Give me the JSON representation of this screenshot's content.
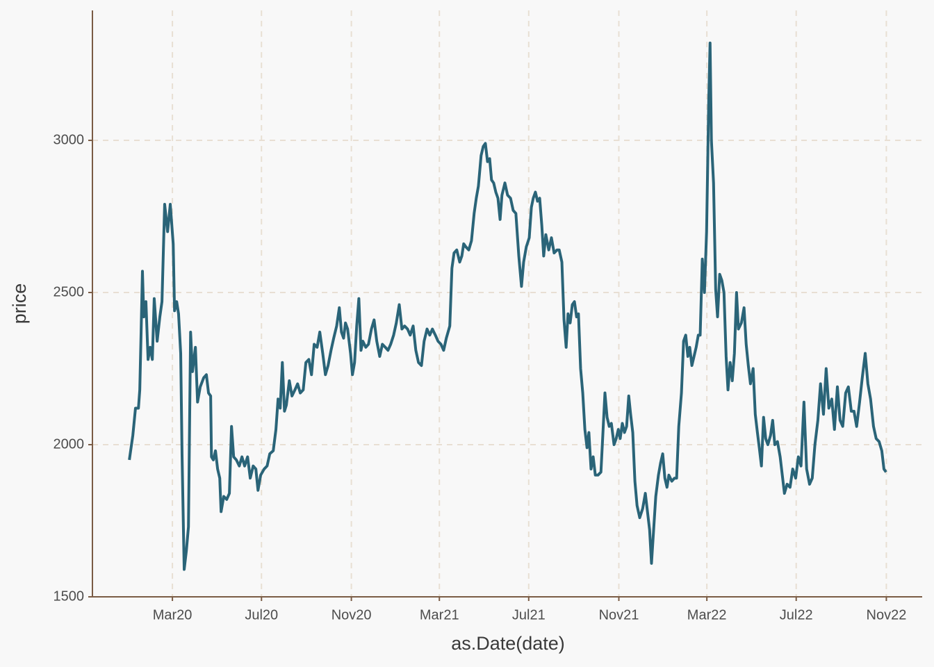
{
  "chart_data": {
    "type": "line",
    "x_label": "as.Date(date)",
    "y_label": "price",
    "color": "#2a6478",
    "grid": true,
    "xlim": [
      2019.865,
      2022.967
    ],
    "ylim": [
      1500,
      3427
    ],
    "xticks": [
      {
        "value": 2020.164,
        "label": "Mar20"
      },
      {
        "value": 2020.497,
        "label": "Jul20"
      },
      {
        "value": 2020.833,
        "label": "Nov20"
      },
      {
        "value": 2021.162,
        "label": "Mar21"
      },
      {
        "value": 2021.496,
        "label": "Jul21"
      },
      {
        "value": 2021.833,
        "label": "Nov21"
      },
      {
        "value": 2022.162,
        "label": "Mar22"
      },
      {
        "value": 2022.496,
        "label": "Jul22"
      },
      {
        "value": 2022.833,
        "label": "Nov22"
      }
    ],
    "yticks": [
      1500,
      2000,
      2500,
      3000
    ],
    "x": [
      2020.003,
      2020.016,
      2020.026,
      2020.037,
      2020.042,
      2020.047,
      2020.052,
      2020.057,
      2020.065,
      2020.073,
      2020.081,
      2020.089,
      2020.096,
      2020.107,
      2020.117,
      2020.125,
      2020.135,
      2020.146,
      2020.156,
      2020.167,
      2020.172,
      2020.18,
      2020.187,
      2020.195,
      2020.2,
      2020.208,
      2020.216,
      2020.224,
      2020.232,
      2020.239,
      2020.25,
      2020.258,
      2020.268,
      2020.281,
      2020.291,
      2020.299,
      2020.307,
      2020.31,
      2020.317,
      2020.325,
      2020.333,
      2020.341,
      2020.346,
      2020.356,
      2020.367,
      2020.377,
      2020.385,
      2020.393,
      2020.403,
      2020.414,
      2020.424,
      2020.434,
      2020.445,
      2020.455,
      2020.466,
      2020.476,
      2020.484,
      2020.494,
      2020.507,
      2020.518,
      2020.528,
      2020.541,
      2020.551,
      2020.559,
      2020.567,
      2020.575,
      2020.583,
      2020.59,
      2020.601,
      2020.611,
      2020.622,
      2020.632,
      2020.642,
      2020.653,
      2020.663,
      2020.674,
      2020.684,
      2020.694,
      2020.705,
      2020.715,
      2020.726,
      2020.736,
      2020.746,
      2020.757,
      2020.767,
      2020.778,
      2020.788,
      2020.796,
      2020.804,
      2020.811,
      2020.819,
      2020.83,
      2020.837,
      2020.845,
      2020.853,
      2020.861,
      2020.869,
      2020.876,
      2020.887,
      2020.897,
      2020.908,
      2020.918,
      2020.928,
      2020.939,
      2020.949,
      2020.96,
      2020.97,
      2020.98,
      2020.991,
      2021.001,
      2021.012,
      2021.022,
      2021.032,
      2021.043,
      2021.053,
      2021.064,
      2021.074,
      2021.084,
      2021.095,
      2021.105,
      2021.116,
      2021.126,
      2021.136,
      2021.147,
      2021.157,
      2021.168,
      2021.178,
      2021.188,
      2021.201,
      2021.209,
      2021.217,
      2021.227,
      2021.238,
      2021.246,
      2021.253,
      2021.261,
      2021.272,
      2021.282,
      2021.292,
      2021.3,
      2021.308,
      2021.318,
      2021.326,
      2021.334,
      2021.342,
      2021.35,
      2021.357,
      2021.365,
      2021.373,
      2021.381,
      2021.389,
      2021.396,
      2021.407,
      2021.417,
      2021.428,
      2021.438,
      2021.448,
      2021.459,
      2021.469,
      2021.477,
      2021.487,
      2021.498,
      2021.506,
      2021.513,
      2021.521,
      2021.529,
      2021.537,
      2021.545,
      2021.552,
      2021.56,
      2021.571,
      2021.581,
      2021.591,
      2021.602,
      2021.61,
      2021.62,
      2021.628,
      2021.636,
      2021.643,
      2021.651,
      2021.659,
      2021.667,
      2021.675,
      2021.682,
      2021.69,
      2021.698,
      2021.706,
      2021.714,
      2021.721,
      2021.729,
      2021.737,
      2021.745,
      2021.755,
      2021.766,
      2021.773,
      2021.781,
      2021.789,
      2021.797,
      2021.805,
      2021.815,
      2021.823,
      2021.831,
      2021.838,
      2021.846,
      2021.854,
      2021.862,
      2021.87,
      2021.877,
      2021.885,
      2021.893,
      2021.901,
      2021.911,
      2021.922,
      2021.932,
      2021.94,
      2021.948,
      2021.955,
      2021.963,
      2021.971,
      2021.981,
      2021.989,
      2021.997,
      2022.005,
      2022.013,
      2022.02,
      2022.031,
      2022.041,
      2022.049,
      2022.057,
      2022.067,
      2022.075,
      2022.083,
      2022.091,
      2022.098,
      2022.106,
      2022.114,
      2022.122,
      2022.13,
      2022.137,
      2022.145,
      2022.153,
      2022.161,
      2022.169,
      2022.174,
      2022.179,
      2022.187,
      2022.195,
      2022.202,
      2022.21,
      2022.218,
      2022.226,
      2022.234,
      2022.241,
      2022.249,
      2022.257,
      2022.265,
      2022.273,
      2022.28,
      2022.291,
      2022.301,
      2022.309,
      2022.317,
      2022.325,
      2022.335,
      2022.343,
      2022.351,
      2022.358,
      2022.366,
      2022.374,
      2022.382,
      2022.39,
      2022.4,
      2022.408,
      2022.416,
      2022.426,
      2022.436,
      2022.444,
      2022.452,
      2022.462,
      2022.473,
      2022.483,
      2022.494,
      2022.504,
      2022.514,
      2022.525,
      2022.535,
      2022.546,
      2022.556,
      2022.566,
      2022.577,
      2022.587,
      2022.598,
      2022.608,
      2022.618,
      2022.629,
      2022.639,
      2022.65,
      2022.66,
      2022.67,
      2022.681,
      2022.691,
      2022.702,
      2022.712,
      2022.722,
      2022.733,
      2022.743,
      2022.754,
      2022.764,
      2022.774,
      2022.785,
      2022.795,
      2022.806,
      2022.816,
      2022.824,
      2022.832
    ],
    "values": [
      1950,
      2030,
      2120,
      2120,
      2180,
      2370,
      2570,
      2420,
      2470,
      2280,
      2320,
      2280,
      2480,
      2340,
      2420,
      2470,
      2790,
      2700,
      2790,
      2660,
      2440,
      2470,
      2430,
      2300,
      1970,
      1590,
      1650,
      1730,
      2370,
      2240,
      2320,
      2140,
      2190,
      2220,
      2230,
      2170,
      2160,
      1960,
      1950,
      1980,
      1920,
      1890,
      1780,
      1830,
      1820,
      1840,
      2060,
      1960,
      1950,
      1930,
      1960,
      1930,
      1960,
      1890,
      1930,
      1920,
      1850,
      1900,
      1920,
      1930,
      1970,
      1980,
      2050,
      2150,
      2120,
      2270,
      2110,
      2130,
      2210,
      2160,
      2180,
      2200,
      2170,
      2180,
      2270,
      2280,
      2230,
      2330,
      2320,
      2370,
      2300,
      2230,
      2260,
      2310,
      2350,
      2390,
      2450,
      2370,
      2350,
      2400,
      2380,
      2300,
      2230,
      2270,
      2390,
      2480,
      2310,
      2340,
      2320,
      2330,
      2380,
      2410,
      2340,
      2290,
      2330,
      2320,
      2310,
      2330,
      2360,
      2400,
      2460,
      2380,
      2390,
      2380,
      2360,
      2390,
      2310,
      2270,
      2260,
      2340,
      2380,
      2360,
      2380,
      2360,
      2340,
      2330,
      2310,
      2350,
      2390,
      2580,
      2630,
      2640,
      2600,
      2620,
      2660,
      2650,
      2640,
      2670,
      2760,
      2810,
      2850,
      2950,
      2980,
      2990,
      2930,
      2940,
      2870,
      2860,
      2830,
      2810,
      2740,
      2820,
      2860,
      2820,
      2810,
      2770,
      2760,
      2620,
      2520,
      2600,
      2650,
      2680,
      2780,
      2810,
      2830,
      2800,
      2810,
      2720,
      2620,
      2690,
      2640,
      2680,
      2630,
      2640,
      2640,
      2600,
      2410,
      2320,
      2430,
      2400,
      2460,
      2470,
      2420,
      2430,
      2250,
      2170,
      2050,
      1990,
      2040,
      1920,
      1960,
      1900,
      1900,
      1910,
      2030,
      2170,
      2090,
      2060,
      2070,
      2000,
      2020,
      2050,
      2020,
      2070,
      2040,
      2060,
      2160,
      2100,
      2040,
      1880,
      1800,
      1760,
      1790,
      1840,
      1780,
      1720,
      1610,
      1720,
      1830,
      1900,
      1940,
      1970,
      1890,
      1860,
      1900,
      1880,
      1890,
      1890,
      2060,
      2170,
      2340,
      2360,
      2290,
      2320,
      2260,
      2290,
      2320,
      2360,
      2360,
      2610,
      2500,
      2700,
      3130,
      3320,
      3000,
      2860,
      2510,
      2420,
      2560,
      2540,
      2500,
      2290,
      2180,
      2270,
      2210,
      2300,
      2500,
      2380,
      2400,
      2450,
      2330,
      2260,
      2200,
      2250,
      2100,
      2040,
      1990,
      1930,
      2090,
      2020,
      2000,
      2030,
      2080,
      2000,
      2010,
      1960,
      1900,
      1840,
      1870,
      1860,
      1920,
      1890,
      1960,
      1930,
      2140,
      1920,
      1870,
      1890,
      2000,
      2080,
      2200,
      2100,
      2250,
      2120,
      2150,
      2050,
      2190,
      2080,
      2060,
      2170,
      2190,
      2110,
      2110,
      2060,
      2140,
      2220,
      2300,
      2200,
      2150,
      2060,
      2020,
      2010,
      1980,
      1920,
      1910
    ]
  }
}
